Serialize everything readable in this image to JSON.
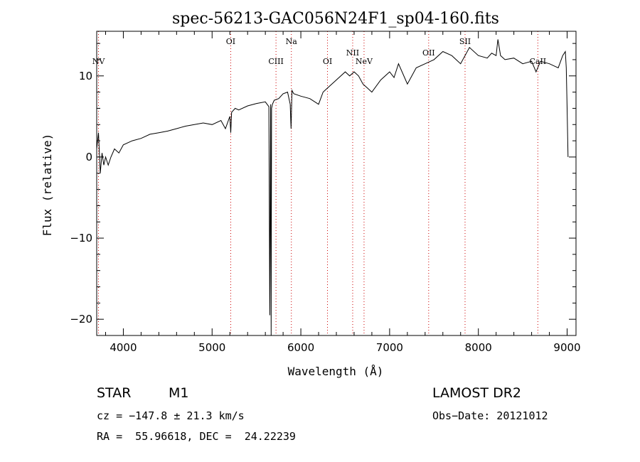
{
  "chart_data": {
    "type": "line",
    "title": "spec-56213-GAC056N24F1_sp04-160.fits",
    "xlabel": "Wavelength (Å)",
    "ylabel": "Flux (relative)",
    "xlim": [
      3700,
      9100
    ],
    "ylim": [
      -22,
      15.5
    ],
    "xticks": [
      4000,
      5000,
      6000,
      7000,
      8000,
      9000
    ],
    "yticks": [
      -20,
      -10,
      0,
      10
    ],
    "ytick_labels": [
      "−20",
      "−10",
      "0",
      "10"
    ],
    "line_color": "#000000",
    "marker_color": "#cc0000",
    "spectrum": {
      "x": [
        3700,
        3720,
        3740,
        3760,
        3780,
        3800,
        3830,
        3860,
        3900,
        3950,
        4000,
        4100,
        4200,
        4300,
        4400,
        4500,
        4600,
        4700,
        4800,
        4900,
        5000,
        5100,
        5150,
        5200,
        5210,
        5220,
        5260,
        5300,
        5400,
        5500,
        5600,
        5640,
        5650,
        5660,
        5665,
        5670,
        5680,
        5700,
        5750,
        5800,
        5850,
        5880,
        5890,
        5900,
        5920,
        6000,
        6100,
        6200,
        6250,
        6300,
        6400,
        6500,
        6550,
        6600,
        6650,
        6700,
        6750,
        6800,
        6900,
        7000,
        7050,
        7100,
        7200,
        7300,
        7400,
        7500,
        7600,
        7700,
        7800,
        7900,
        8000,
        8100,
        8150,
        8200,
        8210,
        8220,
        8250,
        8300,
        8400,
        8500,
        8600,
        8650,
        8700,
        8800,
        8900,
        8950,
        8980,
        8990,
        9000,
        9010
      ],
      "y": [
        1,
        3,
        -2,
        0.5,
        -1,
        0,
        -1,
        0,
        1,
        0.5,
        1.5,
        2,
        2.3,
        2.8,
        3,
        3.2,
        3.5,
        3.8,
        4,
        4.2,
        4,
        4.5,
        3.5,
        5,
        3,
        5.5,
        6,
        5.8,
        6.3,
        6.6,
        6.8,
        6.2,
        -19.5,
        6.5,
        -22,
        6,
        6.5,
        7,
        7.2,
        7.8,
        8,
        6.5,
        3.5,
        8.2,
        7.8,
        7.5,
        7.2,
        6.5,
        8,
        8.5,
        9.5,
        10.5,
        10,
        10.5,
        10,
        9,
        8.5,
        8,
        9.5,
        10.5,
        9.8,
        11.5,
        9,
        11,
        11.5,
        12,
        13,
        12.5,
        11.5,
        13.5,
        12.5,
        12.2,
        12.8,
        12.5,
        13.5,
        14.5,
        12.5,
        12,
        12.2,
        11.5,
        11.8,
        10.5,
        11.8,
        11.5,
        11,
        12.5,
        13,
        11,
        6,
        0
      ]
    },
    "emission_lines": [
      {
        "label": "NV",
        "x": 3720
      },
      {
        "label": "OI",
        "x": 5210
      },
      {
        "label": "CIII",
        "x": 5720
      },
      {
        "label": "Na",
        "x": 5893
      },
      {
        "label": "OI",
        "x": 6300
      },
      {
        "label": "NII",
        "x": 6584
      },
      {
        "label": "NeV",
        "x": 6712
      },
      {
        "label": "OII",
        "x": 7440
      },
      {
        "label": "SII",
        "x": 7850
      },
      {
        "label": "CaII",
        "x": 8670
      }
    ]
  },
  "info": {
    "object_class": "STAR",
    "subclass": "M1",
    "cz": "cz = −147.8 ± 21.3 km/s",
    "coords": "RA =  55.96618, DEC =  24.22239",
    "survey": "LAMOST DR2",
    "obs_date": "Obs−Date: 20121012"
  }
}
